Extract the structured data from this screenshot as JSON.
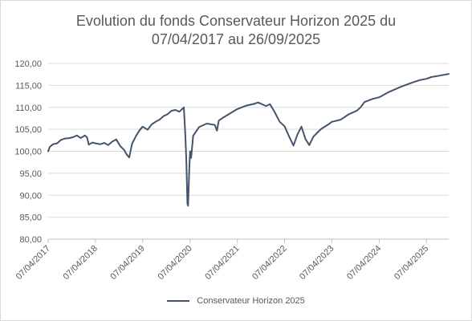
{
  "chart_data": {
    "type": "line",
    "title_lines": [
      "Evolution du fonds Conservateur Horizon 2025 du",
      "07/04/2017 au 26/09/2025"
    ],
    "xlabel": "",
    "ylabel": "",
    "xlim": [
      "07/04/2017",
      "26/09/2025"
    ],
    "ylim": [
      80,
      120
    ],
    "y_ticks": [
      80,
      85,
      90,
      95,
      100,
      105,
      110,
      115,
      120
    ],
    "y_tick_labels": [
      "80,00",
      "85,00",
      "90,00",
      "95,00",
      "100,00",
      "105,00",
      "110,00",
      "115,00",
      "120,00"
    ],
    "x_tick_labels": [
      "07/04/2017",
      "07/04/2018",
      "07/04/2019",
      "07/04/2020",
      "07/04/2021",
      "07/04/2022",
      "07/04/2023",
      "07/04/2024",
      "07/04/2025"
    ],
    "grid": "horizontal",
    "legend_position": "bottom",
    "series": [
      {
        "name": "Conservateur Horizon 2025",
        "color": "#44546a",
        "x": [
          "07/04/2017",
          "20/04/2017",
          "15/05/2017",
          "15/06/2017",
          "15/07/2017",
          "15/08/2017",
          "15/09/2017",
          "15/10/2017",
          "15/11/2017",
          "15/12/2017",
          "15/01/2018",
          "01/02/2018",
          "15/02/2018",
          "15/03/2018",
          "07/04/2018",
          "15/05/2018",
          "15/06/2018",
          "15/07/2018",
          "15/08/2018",
          "15/09/2018",
          "15/10/2018",
          "15/11/2018",
          "01/12/2018",
          "24/12/2018",
          "15/01/2019",
          "15/02/2019",
          "15/03/2019",
          "07/04/2019",
          "15/05/2019",
          "15/06/2019",
          "15/07/2019",
          "15/08/2019",
          "15/09/2019",
          "15/10/2019",
          "15/11/2019",
          "15/12/2019",
          "15/01/2020",
          "19/02/2020",
          "01/03/2020",
          "09/03/2020",
          "18/03/2020",
          "23/03/2020",
          "01/04/2020",
          "07/04/2020",
          "15/04/2020",
          "01/05/2020",
          "15/06/2020",
          "15/08/2020",
          "15/10/2020",
          "01/11/2020",
          "15/11/2020",
          "15/12/2020",
          "15/02/2021",
          "07/04/2021",
          "15/06/2021",
          "15/08/2021",
          "15/09/2021",
          "15/11/2021",
          "15/12/2021",
          "15/01/2022",
          "01/03/2022",
          "07/04/2022",
          "15/05/2022",
          "15/06/2022",
          "15/07/2022",
          "15/08/2022",
          "15/09/2022",
          "15/10/2022",
          "15/11/2022",
          "15/12/2022",
          "15/01/2023",
          "15/03/2023",
          "07/04/2023",
          "15/06/2023",
          "15/08/2023",
          "15/10/2023",
          "15/11/2023",
          "15/12/2023",
          "15/02/2024",
          "07/04/2024",
          "15/06/2024",
          "15/09/2024",
          "15/12/2024",
          "15/02/2025",
          "07/04/2025",
          "15/05/2025",
          "15/07/2025",
          "26/09/2025"
        ],
        "values": [
          100.0,
          101.0,
          101.6,
          101.8,
          102.6,
          102.9,
          103.0,
          103.2,
          103.6,
          103.0,
          103.6,
          103.2,
          101.5,
          102.0,
          101.8,
          101.6,
          101.9,
          101.4,
          102.2,
          102.7,
          101.2,
          100.3,
          99.4,
          98.6,
          101.7,
          103.5,
          104.8,
          105.6,
          104.9,
          106.1,
          106.7,
          107.2,
          108.0,
          108.4,
          109.2,
          109.4,
          109.0,
          110.0,
          104.0,
          98.0,
          88.0,
          87.6,
          96.0,
          100.0,
          98.5,
          103.5,
          105.5,
          106.3,
          106.0,
          104.7,
          107.0,
          107.6,
          108.7,
          109.6,
          110.4,
          110.8,
          111.1,
          110.3,
          110.7,
          109.2,
          106.7,
          105.7,
          103.2,
          101.3,
          103.8,
          105.6,
          102.8,
          101.4,
          103.3,
          104.2,
          105.1,
          106.2,
          106.7,
          107.2,
          108.4,
          109.2,
          110.0,
          111.2,
          111.9,
          112.3,
          113.4,
          114.6,
          115.6,
          116.2,
          116.5,
          116.9,
          117.2,
          117.6
        ]
      }
    ]
  }
}
